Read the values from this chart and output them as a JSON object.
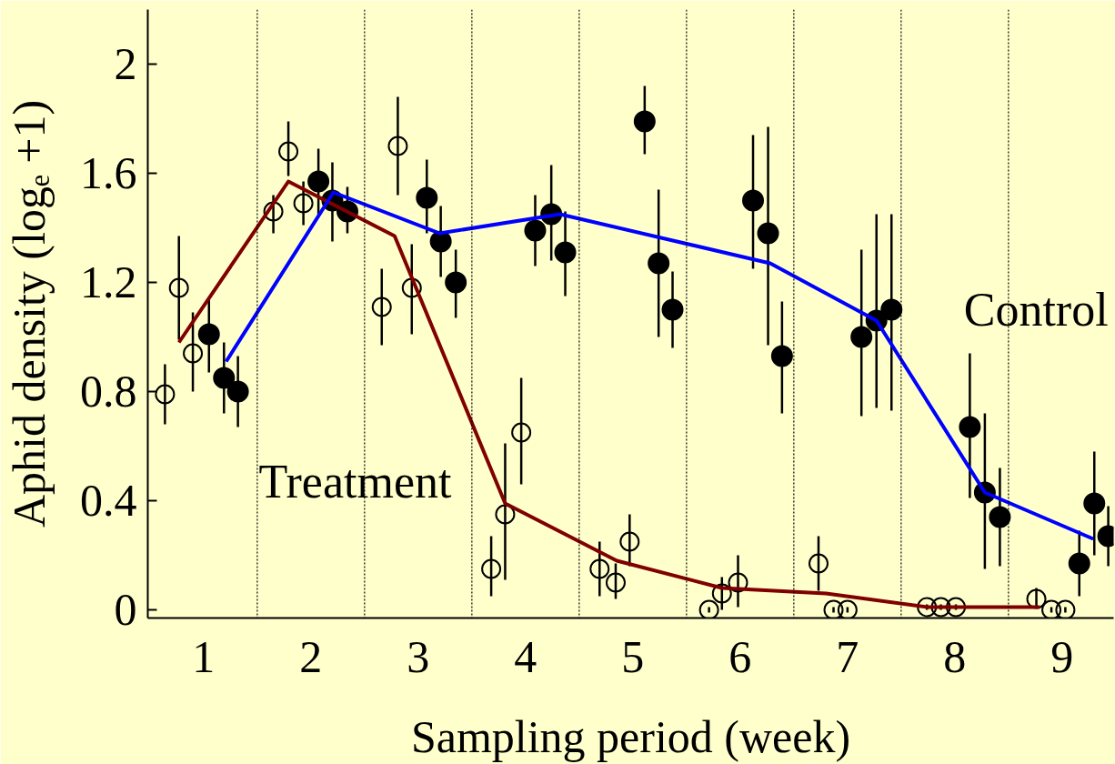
{
  "chart_data": {
    "type": "scatter",
    "xlabel": "Sampling period (week)",
    "ylabel": "Aphid density (logₑ +1)",
    "xlim": [
      0.48,
      9.48
    ],
    "xticks": [
      1,
      2,
      3,
      4,
      5,
      6,
      7,
      8,
      9
    ],
    "ylim": [
      -0.03,
      2.2
    ],
    "yticks": [
      0,
      {
        "value": 0.4,
        "label": "0.4"
      },
      {
        "value": 0.8,
        "label": "0.8"
      },
      {
        "value": 1.2,
        "label": "1.2"
      },
      {
        "value": 1.6,
        "label": "1.6"
      },
      2
    ],
    "grid": false,
    "ref_lines": [
      {
        "axis": "x",
        "value": 1.5,
        "line_style": "dotted"
      },
      {
        "axis": "x",
        "value": 2.5,
        "line_style": "dotted"
      },
      {
        "axis": "x",
        "value": 3.5,
        "line_style": "dotted"
      },
      {
        "axis": "x",
        "value": 4.5,
        "line_style": "dotted"
      },
      {
        "axis": "x",
        "value": 5.5,
        "line_style": "dotted"
      },
      {
        "axis": "x",
        "value": 6.5,
        "line_style": "dotted"
      },
      {
        "axis": "x",
        "value": 7.5,
        "line_style": "dotted"
      },
      {
        "axis": "x",
        "value": 8.5,
        "line_style": "dotted"
      }
    ],
    "series": [
      {
        "marker": "circle",
        "color": "#000000",
        "x": [
          0.64,
          0.77,
          0.9,
          1.65,
          1.79,
          1.93,
          2.66,
          2.81,
          2.94,
          3.68,
          3.81,
          3.96,
          4.69,
          4.84,
          4.97,
          5.71,
          5.83,
          5.98,
          6.73,
          6.87,
          7.0,
          7.74,
          7.87,
          8.01,
          8.76,
          8.9,
          9.03
        ],
        "values": [
          0.79,
          1.18,
          0.94,
          1.46,
          1.68,
          1.49,
          1.11,
          1.7,
          1.18,
          0.15,
          0.35,
          0.65,
          0.15,
          0.1,
          0.25,
          0.0,
          0.06,
          0.1,
          0.17,
          0.0,
          0.0,
          0.01,
          0.01,
          0.01,
          0.04,
          0.0,
          0.0
        ],
        "errors": [
          [
            0.68,
            0.9
          ],
          [
            0.99,
            1.37
          ],
          [
            0.8,
            1.09
          ],
          [
            1.38,
            1.52
          ],
          [
            1.59,
            1.79
          ],
          [
            1.41,
            1.57
          ],
          [
            0.97,
            1.25
          ],
          [
            1.52,
            1.88
          ],
          [
            1.01,
            1.34
          ],
          [
            0.05,
            0.27
          ],
          [
            0.11,
            0.61
          ],
          [
            0.46,
            0.85
          ],
          [
            0.05,
            0.25
          ],
          [
            0.04,
            0.17
          ],
          [
            0.16,
            0.35
          ],
          [
            -0.01,
            0.01
          ],
          [
            0.0,
            0.12
          ],
          [
            0.01,
            0.2
          ],
          [
            0.07,
            0.27
          ],
          [
            -0.01,
            0.01
          ],
          [
            -0.01,
            0.01
          ],
          [
            0.0,
            0.02
          ],
          [
            0.0,
            0.02
          ],
          [
            0.0,
            0.02
          ],
          [
            0.01,
            0.08
          ],
          [
            -0.01,
            0.01
          ],
          [
            -0.01,
            0.01
          ]
        ]
      },
      {
        "marker": "circle",
        "color": "#000000",
        "x": [
          1.05,
          1.19,
          1.32,
          2.07,
          2.2,
          2.34,
          3.08,
          3.21,
          3.35,
          4.09,
          4.24,
          4.37,
          5.11,
          5.24,
          5.37,
          6.12,
          6.26,
          6.39,
          7.13,
          7.27,
          7.41,
          8.14,
          8.28,
          8.42,
          9.16,
          9.3,
          9.43
        ],
        "values": [
          1.01,
          0.85,
          0.8,
          1.57,
          1.5,
          1.46,
          1.51,
          1.35,
          1.2,
          1.39,
          1.45,
          1.31,
          1.79,
          1.27,
          1.1,
          1.5,
          1.38,
          0.93,
          1.0,
          1.06,
          1.1,
          0.67,
          0.43,
          0.34,
          0.17,
          0.39,
          0.27
        ],
        "errors": [
          [
            0.87,
            1.14
          ],
          [
            0.72,
            0.98
          ],
          [
            0.67,
            0.93
          ],
          [
            1.45,
            1.69
          ],
          [
            1.35,
            1.64
          ],
          [
            1.38,
            1.55
          ],
          [
            1.38,
            1.65
          ],
          [
            1.22,
            1.48
          ],
          [
            1.07,
            1.32
          ],
          [
            1.26,
            1.52
          ],
          [
            1.28,
            1.63
          ],
          [
            1.15,
            1.46
          ],
          [
            1.67,
            1.92
          ],
          [
            1.0,
            1.54
          ],
          [
            0.96,
            1.24
          ],
          [
            1.25,
            1.74
          ],
          [
            0.97,
            1.77
          ],
          [
            0.72,
            1.13
          ],
          [
            0.71,
            1.32
          ],
          [
            0.74,
            1.45
          ],
          [
            0.73,
            1.45
          ],
          [
            0.41,
            0.94
          ],
          [
            0.15,
            0.72
          ],
          [
            0.16,
            0.52
          ],
          [
            0.05,
            0.29
          ],
          [
            0.2,
            0.58
          ],
          [
            0.16,
            0.38
          ]
        ]
      },
      {
        "type": "line",
        "name": "Treatment",
        "color": "#800000",
        "x": [
          0.77,
          1.79,
          2.78,
          3.81,
          4.85,
          5.83,
          6.8,
          7.74,
          8.79
        ],
        "values": [
          0.98,
          1.57,
          1.37,
          0.39,
          0.18,
          0.08,
          0.06,
          0.01,
          0.01
        ]
      },
      {
        "type": "line",
        "name": "Control",
        "color": "#0000ff",
        "x": [
          1.21,
          2.21,
          3.2,
          4.32,
          6.28,
          7.27,
          8.28,
          9.29
        ],
        "values": [
          0.91,
          1.53,
          1.38,
          1.45,
          1.27,
          1.06,
          0.43,
          0.26
        ]
      }
    ]
  }
}
